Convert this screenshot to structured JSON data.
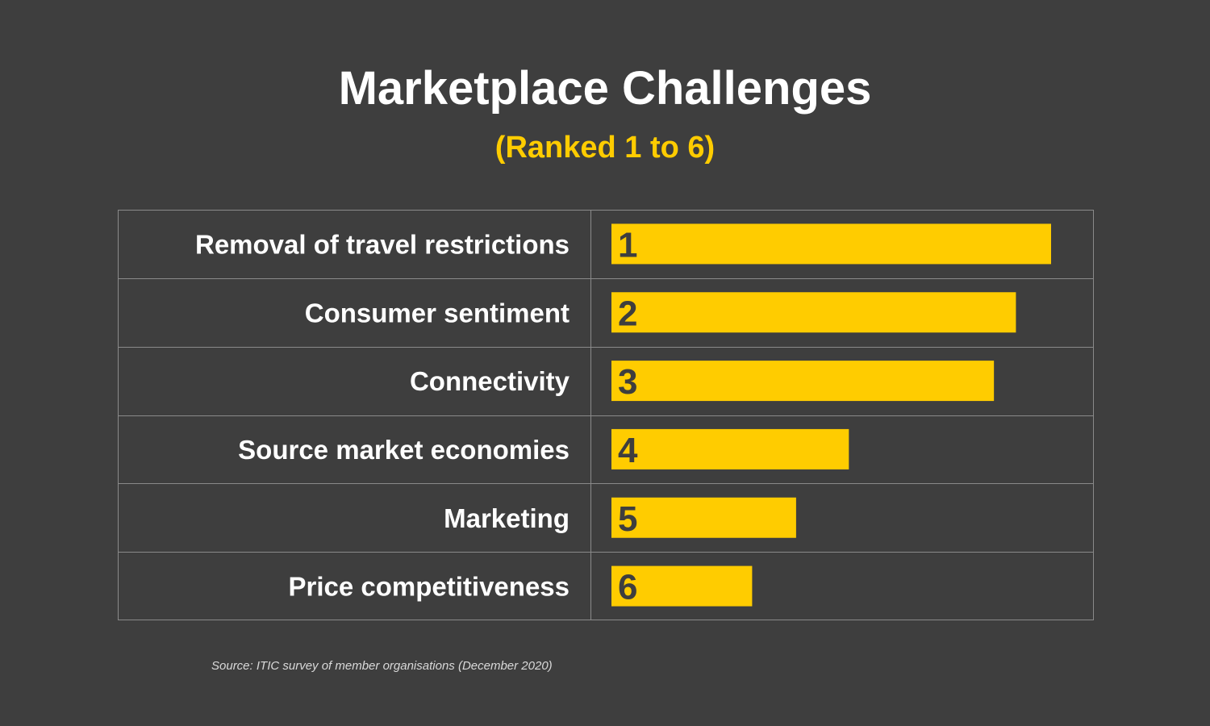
{
  "header": {
    "title": "Marketplace Challenges",
    "subtitle": "(Ranked 1 to 6)"
  },
  "colors": {
    "background": "#3e3e3e",
    "accent": "#ffcc00",
    "grid": "#8a8a8a",
    "text": "#ffffff",
    "rank_text": "#3e3e3e"
  },
  "chart_data": {
    "type": "bar",
    "orientation": "horizontal",
    "title": "Marketplace Challenges",
    "subtitle": "(Ranked 1 to 6)",
    "categories": [
      "Removal of travel restrictions",
      "Consumer sentiment",
      "Connectivity",
      "Source market economies",
      "Marketing",
      "Price competitiveness"
    ],
    "data_labels": [
      "1",
      "2",
      "3",
      "4",
      "5",
      "6"
    ],
    "values": [
      100,
      92,
      87,
      54,
      42,
      32
    ],
    "xlim": [
      0,
      100
    ],
    "grid": true,
    "legend": "none"
  },
  "source": "Source: ITIC survey of member organisations (December 2020)"
}
